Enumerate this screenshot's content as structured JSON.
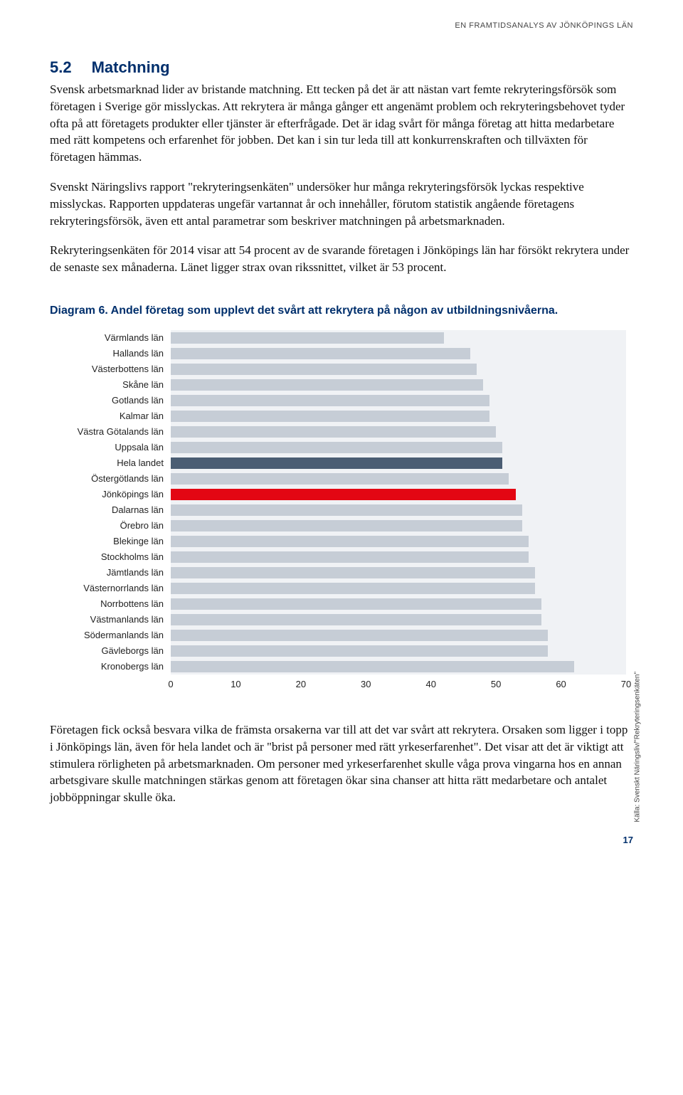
{
  "running_head": "EN FRAMTIDSANALYS AV JÖNKÖPINGS LÄN",
  "section": {
    "num": "5.2",
    "title": "Matchning"
  },
  "paragraphs": {
    "p1": "Svensk arbetsmarknad lider av bristande matchning. Ett tecken på det är att nästan vart femte rekryteringsförsök som företagen i Sverige gör misslyckas. Att rekrytera är många gånger ett angenämt problem och rekryteringsbehovet tyder ofta på att företagets produkter eller tjänster är efterfrågade. Det är idag svårt för många företag att hitta medarbetare med rätt kompetens och erfarenhet för jobben. Det kan i sin tur leda till att konkurrenskraften och tillväxten för företagen hämmas.",
    "p2": "Svenskt Näringslivs rapport \"rekryteringsenkäten\" undersöker hur många rekryteringsförsök lyckas respektive misslyckas. Rapporten uppdateras ungefär vartannat år och innehåller, förutom statistik angående företagens rekryteringsförsök, även ett antal parametrar som beskriver matchningen på arbetsmarknaden.",
    "p3": "Rekryteringsenkäten för 2014 visar att 54 procent av de svarande företagen i Jönköpings län har försökt rekrytera under de senaste sex månaderna. Länet ligger strax ovan rikssnittet, vilket är 53 procent."
  },
  "diagram_title": "Diagram 6. Andel företag som upplevt det svårt att rekrytera på någon av utbildningsnivåerna.",
  "chart": {
    "type": "bar",
    "xlim": [
      0,
      70
    ],
    "xtick_step": 10,
    "xticks": [
      "0",
      "10",
      "20",
      "30",
      "40",
      "50",
      "60",
      "70"
    ],
    "plot_bg": "#f0f2f5",
    "bar_default_color": "#c6cdd6",
    "bar_highlight_landet": "#4a5d73",
    "bar_highlight_region": "#e30613",
    "axis_font_size": 13,
    "label_font_size": 13,
    "source": "Källa: Svenskt Näringsliv/\"Rekryteringsenkäten\"",
    "rows": [
      {
        "label": "Värmlands län",
        "value": 42,
        "color": "#c6cdd6"
      },
      {
        "label": "Hallands län",
        "value": 46,
        "color": "#c6cdd6"
      },
      {
        "label": "Västerbottens län",
        "value": 47,
        "color": "#c6cdd6"
      },
      {
        "label": "Skåne län",
        "value": 48,
        "color": "#c6cdd6"
      },
      {
        "label": "Gotlands län",
        "value": 49,
        "color": "#c6cdd6"
      },
      {
        "label": "Kalmar län",
        "value": 49,
        "color": "#c6cdd6"
      },
      {
        "label": "Västra Götalands län",
        "value": 50,
        "color": "#c6cdd6"
      },
      {
        "label": "Uppsala län",
        "value": 51,
        "color": "#c6cdd6"
      },
      {
        "label": "Hela landet",
        "value": 51,
        "color": "#4a5d73"
      },
      {
        "label": "Östergötlands län",
        "value": 52,
        "color": "#c6cdd6"
      },
      {
        "label": "Jönköpings län",
        "value": 53,
        "color": "#e30613"
      },
      {
        "label": "Dalarnas län",
        "value": 54,
        "color": "#c6cdd6"
      },
      {
        "label": "Örebro län",
        "value": 54,
        "color": "#c6cdd6"
      },
      {
        "label": "Blekinge län",
        "value": 55,
        "color": "#c6cdd6"
      },
      {
        "label": "Stockholms län",
        "value": 55,
        "color": "#c6cdd6"
      },
      {
        "label": "Jämtlands län",
        "value": 56,
        "color": "#c6cdd6"
      },
      {
        "label": "Västernorrlands län",
        "value": 56,
        "color": "#c6cdd6"
      },
      {
        "label": "Norrbottens län",
        "value": 57,
        "color": "#c6cdd6"
      },
      {
        "label": "Västmanlands län",
        "value": 57,
        "color": "#c6cdd6"
      },
      {
        "label": "Södermanlands län",
        "value": 58,
        "color": "#c6cdd6"
      },
      {
        "label": "Gävleborgs län",
        "value": 58,
        "color": "#c6cdd6"
      },
      {
        "label": "Kronobergs län",
        "value": 62,
        "color": "#c6cdd6"
      }
    ]
  },
  "footer_paragraph": "Företagen fick också besvara vilka de främsta orsakerna var till att det var svårt att rekrytera. Orsaken som ligger i topp i Jönköpings län, även för hela landet och är \"brist på personer med rätt yrkeserfarenhet\". Det visar att det är viktigt att stimulera rörligheten på arbetsmarknaden. Om personer med yrkeserfarenhet skulle våga prova vingarna hos en annan arbetsgivare skulle matchningen stärkas genom att företagen ökar sina chanser att hitta rätt medarbetare och antalet jobböppningar skulle öka.",
  "page_number": "17"
}
